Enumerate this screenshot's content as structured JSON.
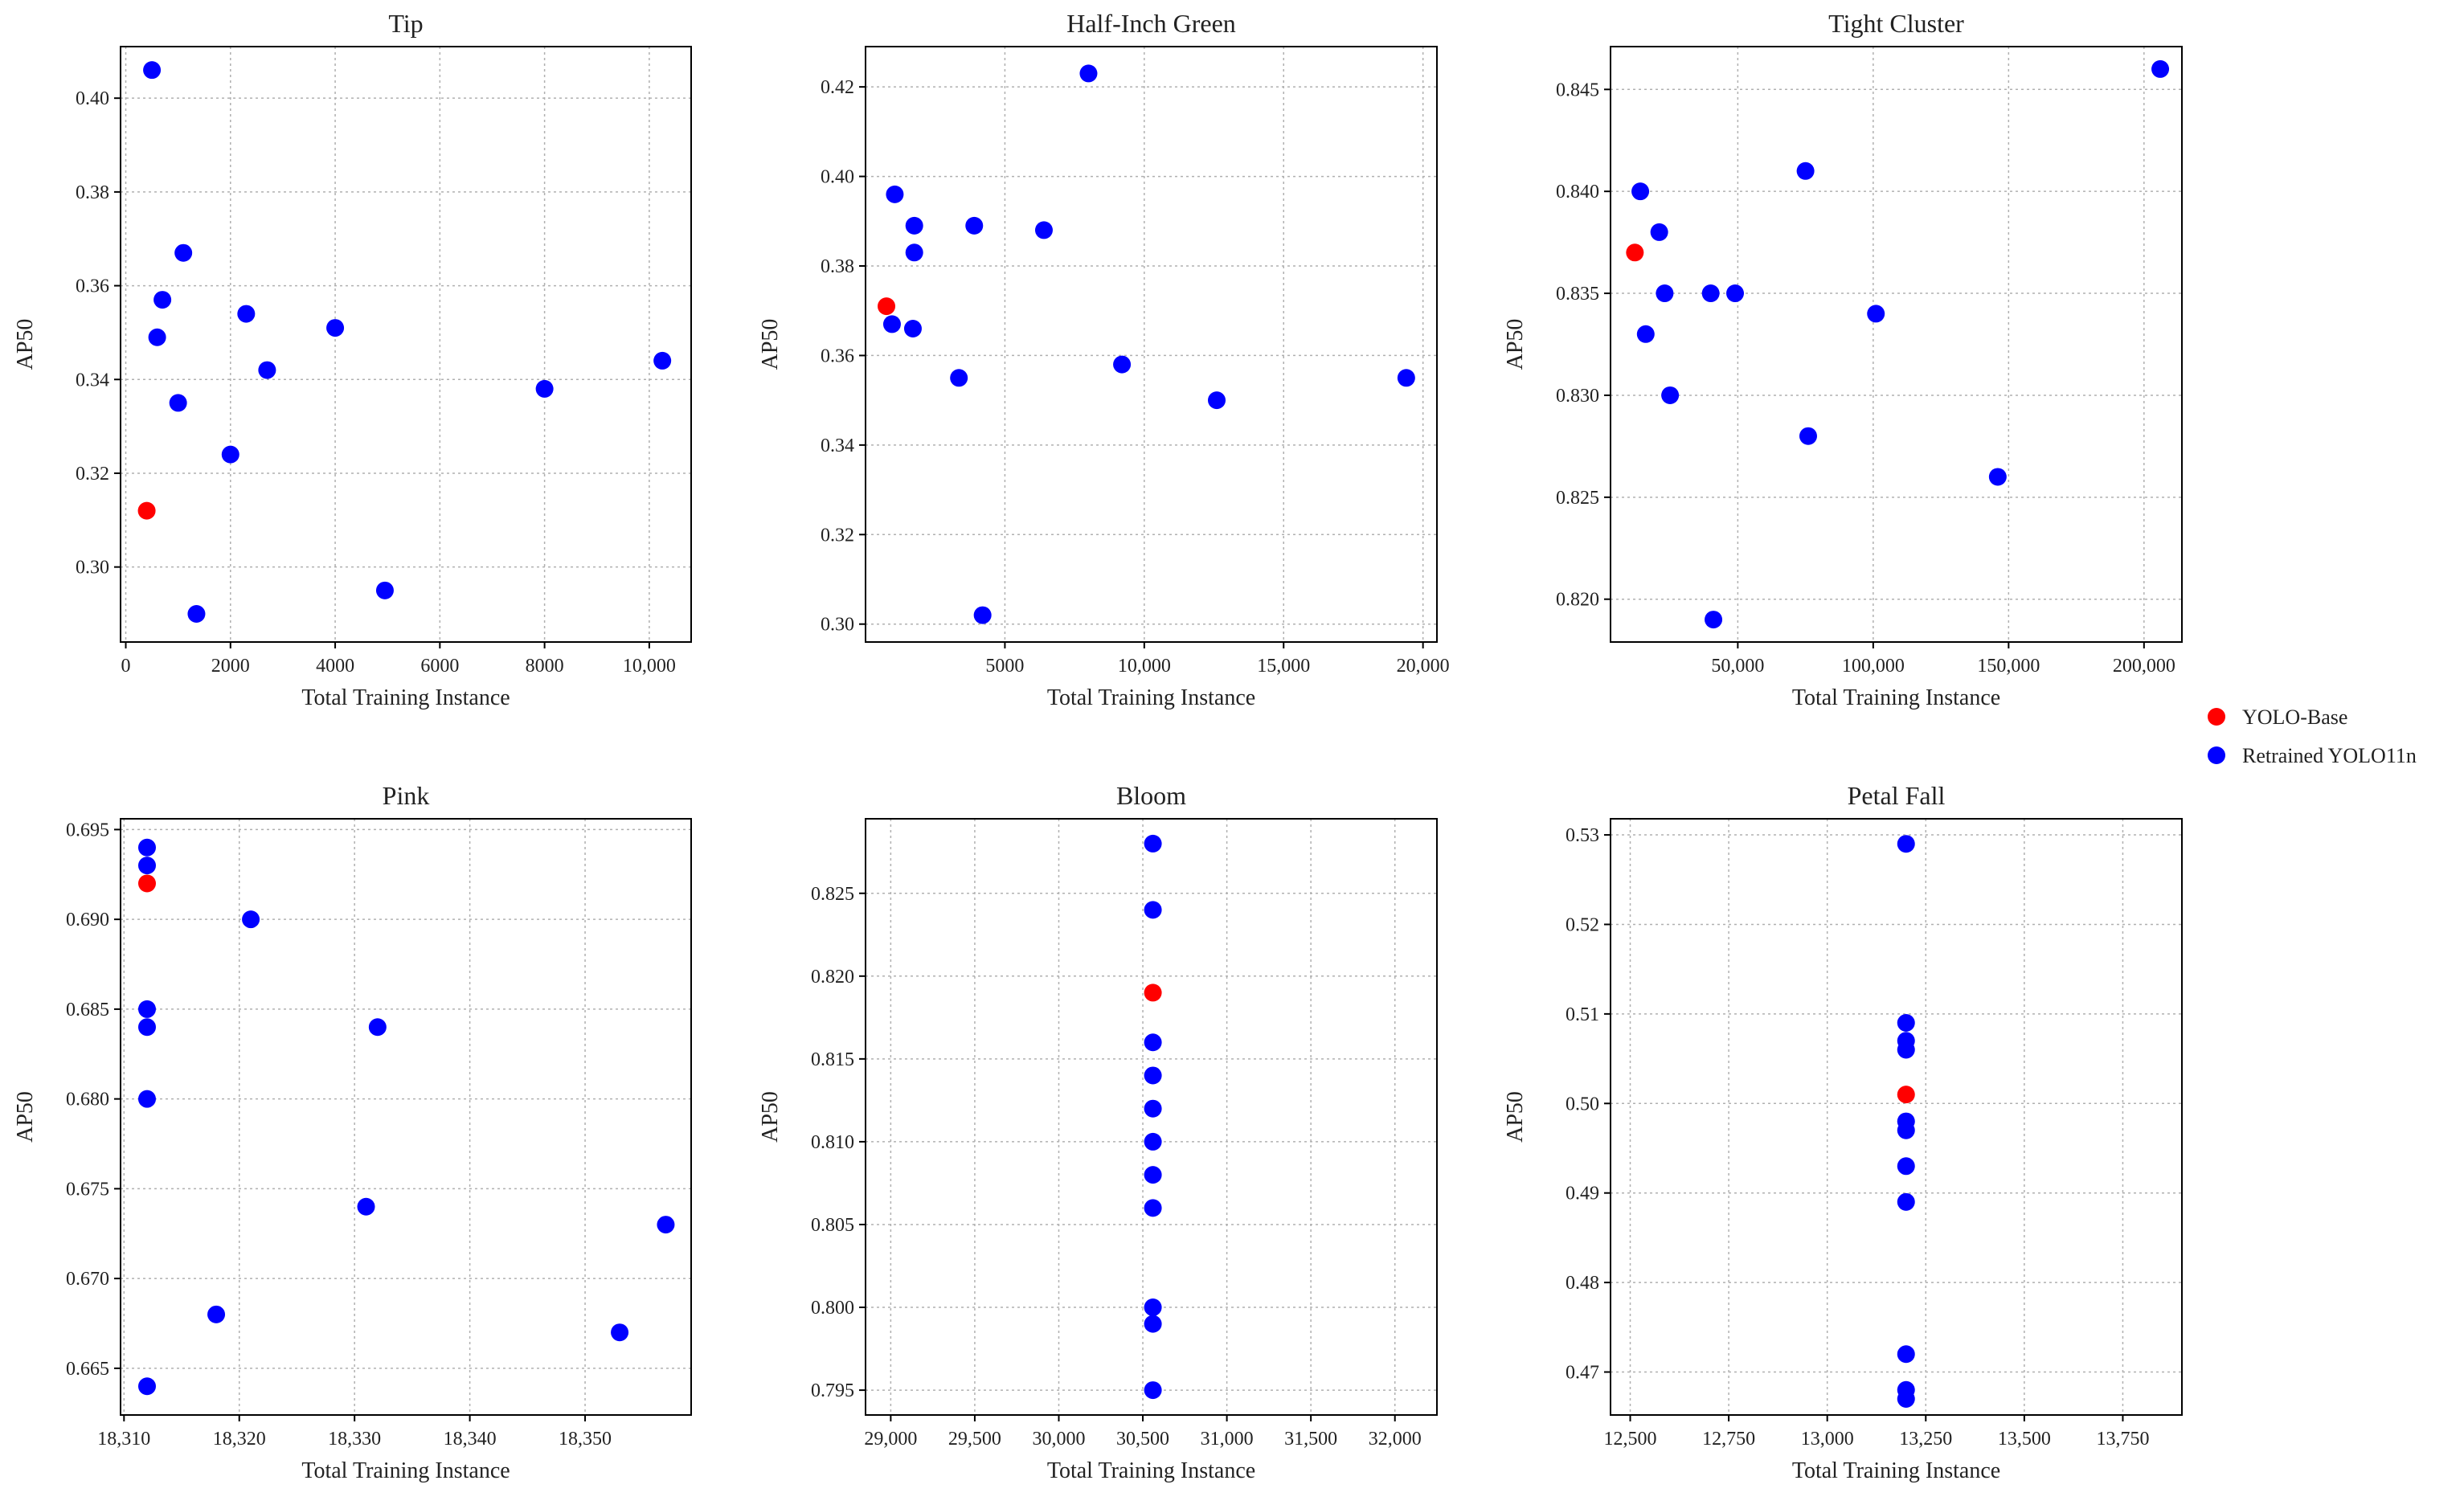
{
  "legend": {
    "position": "right-center",
    "items": [
      {
        "label": "YOLO-Base",
        "color": "#ff0000"
      },
      {
        "label": "Retrained YOLO11n",
        "color": "#0000ff"
      }
    ]
  },
  "chart_data": [
    {
      "type": "scatter",
      "title": "Tip",
      "xlabel": "Total Training Instance",
      "ylabel": "AP50",
      "grid": true,
      "xlim": [
        -100,
        10800
      ],
      "ylim": [
        0.284,
        0.411
      ],
      "xticks": [
        0,
        2000,
        4000,
        6000,
        8000,
        10000
      ],
      "xtick_labels": [
        "0",
        "2000",
        "4000",
        "6000",
        "8000",
        "10,000"
      ],
      "yticks": [
        0.3,
        0.32,
        0.34,
        0.36,
        0.38,
        0.4
      ],
      "ytick_labels": [
        "0.30",
        "0.32",
        "0.34",
        "0.36",
        "0.38",
        "0.40"
      ],
      "series": [
        {
          "name": "YOLO-Base",
          "color": "#ff0000",
          "points": [
            [
              400,
              0.312
            ]
          ]
        },
        {
          "name": "Retrained YOLO11n",
          "color": "#0000ff",
          "points": [
            [
              500,
              0.406
            ],
            [
              1100,
              0.367
            ],
            [
              700,
              0.357
            ],
            [
              600,
              0.349
            ],
            [
              1000,
              0.335
            ],
            [
              2300,
              0.354
            ],
            [
              2700,
              0.342
            ],
            [
              4000,
              0.351
            ],
            [
              2000,
              0.324
            ],
            [
              1350,
              0.29
            ],
            [
              4950,
              0.295
            ],
            [
              8000,
              0.338
            ],
            [
              10250,
              0.344
            ]
          ]
        }
      ]
    },
    {
      "type": "scatter",
      "title": "Half-Inch Green",
      "xlabel": "Total Training Instance",
      "ylabel": "AP50",
      "grid": true,
      "xlim": [
        0,
        20500
      ],
      "ylim": [
        0.296,
        0.429
      ],
      "xticks": [
        5000,
        10000,
        15000,
        20000
      ],
      "xtick_labels": [
        "5000",
        "10,000",
        "15,000",
        "20,000"
      ],
      "yticks": [
        0.3,
        0.32,
        0.34,
        0.36,
        0.38,
        0.4,
        0.42
      ],
      "ytick_labels": [
        "0.30",
        "0.32",
        "0.34",
        "0.36",
        "0.38",
        "0.40",
        "0.42"
      ],
      "series": [
        {
          "name": "YOLO-Base",
          "color": "#ff0000",
          "points": [
            [
              750,
              0.371
            ]
          ]
        },
        {
          "name": "Retrained YOLO11n",
          "color": "#0000ff",
          "points": [
            [
              950,
              0.367
            ],
            [
              1050,
              0.396
            ],
            [
              1750,
              0.389
            ],
            [
              1750,
              0.383
            ],
            [
              1700,
              0.366
            ],
            [
              3900,
              0.389
            ],
            [
              6400,
              0.388
            ],
            [
              8000,
              0.423
            ],
            [
              3350,
              0.355
            ],
            [
              4200,
              0.302
            ],
            [
              9200,
              0.358
            ],
            [
              12600,
              0.35
            ],
            [
              19400,
              0.355
            ]
          ]
        }
      ]
    },
    {
      "type": "scatter",
      "title": "Tight Cluster",
      "xlabel": "Total Training Instance",
      "ylabel": "AP50",
      "grid": true,
      "xlim": [
        3000,
        214000
      ],
      "ylim": [
        0.8179,
        0.8471
      ],
      "xticks": [
        50000,
        100000,
        150000,
        200000
      ],
      "xtick_labels": [
        "50,000",
        "100,000",
        "150,000",
        "200,000"
      ],
      "yticks": [
        0.82,
        0.825,
        0.83,
        0.835,
        0.84,
        0.845
      ],
      "ytick_labels": [
        "0.820",
        "0.825",
        "0.830",
        "0.835",
        "0.840",
        "0.845"
      ],
      "series": [
        {
          "name": "YOLO-Base",
          "color": "#ff0000",
          "points": [
            [
              12000,
              0.837
            ]
          ]
        },
        {
          "name": "Retrained YOLO11n",
          "color": "#0000ff",
          "points": [
            [
              14000,
              0.84
            ],
            [
              21000,
              0.838
            ],
            [
              23000,
              0.835
            ],
            [
              16000,
              0.833
            ],
            [
              25000,
              0.83
            ],
            [
              40000,
              0.835
            ],
            [
              49000,
              0.835
            ],
            [
              75000,
              0.841
            ],
            [
              101000,
              0.834
            ],
            [
              76000,
              0.828
            ],
            [
              146000,
              0.826
            ],
            [
              41000,
              0.819
            ],
            [
              206000,
              0.846
            ]
          ]
        }
      ]
    },
    {
      "type": "scatter",
      "title": "Pink",
      "xlabel": "Total Training Instance",
      "ylabel": "AP50",
      "grid": true,
      "xlim": [
        18309.7,
        18359.2
      ],
      "ylim": [
        0.6624,
        0.6956
      ],
      "xticks": [
        18310,
        18320,
        18330,
        18340,
        18350
      ],
      "xtick_labels": [
        "18,310",
        "18,320",
        "18,330",
        "18,340",
        "18,350"
      ],
      "yticks": [
        0.665,
        0.67,
        0.675,
        0.68,
        0.685,
        0.69,
        0.695
      ],
      "ytick_labels": [
        "0.665",
        "0.670",
        "0.675",
        "0.680",
        "0.685",
        "0.690",
        "0.695"
      ],
      "series": [
        {
          "name": "YOLO-Base",
          "color": "#ff0000",
          "points": [
            [
              18312,
              0.692
            ]
          ]
        },
        {
          "name": "Retrained YOLO11n",
          "color": "#0000ff",
          "points": [
            [
              18312,
              0.694
            ],
            [
              18312,
              0.693
            ],
            [
              18312,
              0.685
            ],
            [
              18312,
              0.684
            ],
            [
              18312,
              0.68
            ],
            [
              18312,
              0.664
            ],
            [
              18321,
              0.69
            ],
            [
              18332,
              0.684
            ],
            [
              18331,
              0.674
            ],
            [
              18318,
              0.668
            ],
            [
              18357,
              0.673
            ],
            [
              18353,
              0.667
            ]
          ]
        }
      ]
    },
    {
      "type": "scatter",
      "title": "Bloom",
      "xlabel": "Total Training Instance",
      "ylabel": "AP50",
      "grid": true,
      "xlim": [
        28850,
        32250
      ],
      "ylim": [
        0.7935,
        0.8295
      ],
      "xticks": [
        29000,
        29500,
        30000,
        30500,
        31000,
        31500,
        32000
      ],
      "xtick_labels": [
        "29,000",
        "29,500",
        "30,000",
        "30,500",
        "31,000",
        "31,500",
        "32,000"
      ],
      "yticks": [
        0.795,
        0.8,
        0.805,
        0.81,
        0.815,
        0.82,
        0.825
      ],
      "ytick_labels": [
        "0.795",
        "0.800",
        "0.805",
        "0.810",
        "0.815",
        "0.820",
        "0.825"
      ],
      "series": [
        {
          "name": "YOLO-Base",
          "color": "#ff0000",
          "points": [
            [
              30560,
              0.819
            ]
          ]
        },
        {
          "name": "Retrained YOLO11n",
          "color": "#0000ff",
          "points": [
            [
              30560,
              0.828
            ],
            [
              30560,
              0.824
            ],
            [
              30560,
              0.816
            ],
            [
              30560,
              0.814
            ],
            [
              30560,
              0.812
            ],
            [
              30560,
              0.81
            ],
            [
              30560,
              0.808
            ],
            [
              30560,
              0.806
            ],
            [
              30560,
              0.8
            ],
            [
              30560,
              0.799
            ],
            [
              30560,
              0.795
            ]
          ]
        }
      ]
    },
    {
      "type": "scatter",
      "title": "Petal Fall",
      "xlabel": "Total Training Instance",
      "ylabel": "AP50",
      "grid": true,
      "xlim": [
        12450,
        13900
      ],
      "ylim": [
        0.4652,
        0.5318
      ],
      "xticks": [
        12500,
        12750,
        13000,
        13250,
        13500,
        13750
      ],
      "xtick_labels": [
        "12,500",
        "12,750",
        "13,000",
        "13,250",
        "13,500",
        "13,750"
      ],
      "yticks": [
        0.47,
        0.48,
        0.49,
        0.5,
        0.51,
        0.52,
        0.53
      ],
      "ytick_labels": [
        "0.47",
        "0.48",
        "0.49",
        "0.50",
        "0.51",
        "0.52",
        "0.53"
      ],
      "series": [
        {
          "name": "YOLO-Base",
          "color": "#ff0000",
          "points": [
            [
              13200,
              0.501
            ]
          ]
        },
        {
          "name": "Retrained YOLO11n",
          "color": "#0000ff",
          "points": [
            [
              13200,
              0.529
            ],
            [
              13200,
              0.509
            ],
            [
              13200,
              0.507
            ],
            [
              13200,
              0.506
            ],
            [
              13200,
              0.498
            ],
            [
              13200,
              0.497
            ],
            [
              13200,
              0.493
            ],
            [
              13200,
              0.489
            ],
            [
              13200,
              0.472
            ],
            [
              13200,
              0.468
            ],
            [
              13200,
              0.467
            ]
          ]
        }
      ]
    }
  ]
}
